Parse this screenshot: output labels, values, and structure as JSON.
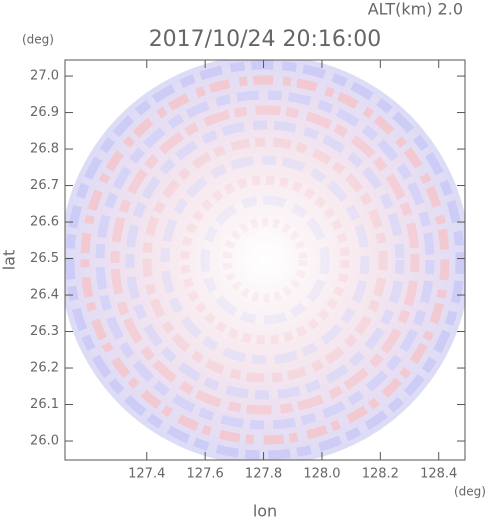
{
  "chart_data": {
    "type": "radar-ppi",
    "title": "2017/10/24 20:16:00",
    "subtitle": "ALT(km) 2.0",
    "x_label": "lon",
    "y_label": "lat",
    "x_unit": "(deg)",
    "y_unit": "(deg)",
    "xlim": [
      127.12,
      128.49
    ],
    "ylim": [
      25.948,
      27.044
    ],
    "xticks": [
      127.4,
      127.6,
      127.8,
      {
        "value": 128,
        "label": "128.0"
      },
      128.2,
      128.4
    ],
    "yticks": [
      {
        "value": 26,
        "label": "26.0"
      },
      26.1,
      26.2,
      26.3,
      26.4,
      26.5,
      26.6,
      26.7,
      26.8,
      26.9,
      {
        "value": 27,
        "label": "27.0"
      }
    ]
  }
}
